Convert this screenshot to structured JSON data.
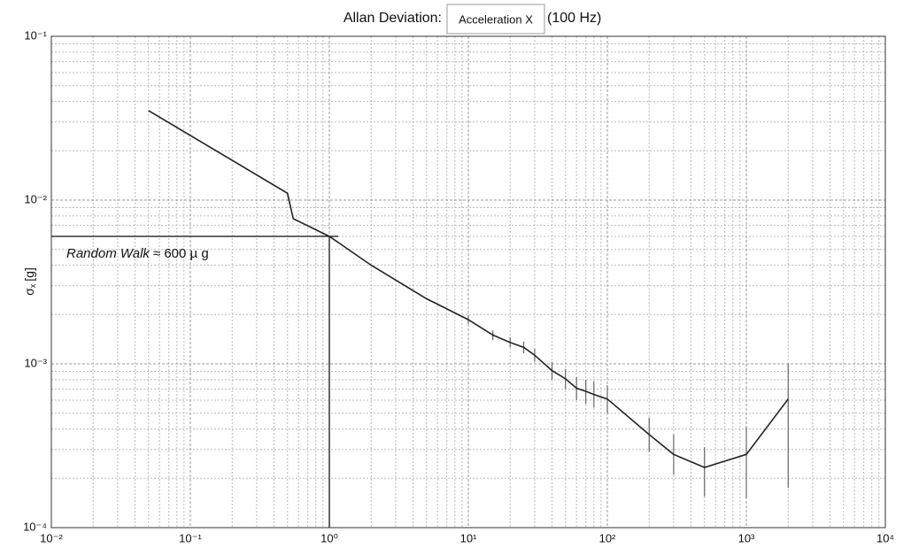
{
  "chart_data": {
    "type": "line",
    "title": "Allan Deviation:",
    "selector": "Acceleration X",
    "subtitle": "(100 Hz)",
    "ylabel": {
      "symbol": "σ",
      "subscript": "x",
      "unit": "[g]"
    },
    "log_x": true,
    "log_y": true,
    "grid": "major-and-minor",
    "xlim": [
      0.01,
      10000
    ],
    "ylim": [
      0.0001,
      0.1
    ],
    "xticks": [
      {
        "value": 0.01,
        "label": "10⁻²"
      },
      {
        "value": 0.1,
        "label": "10⁻¹"
      },
      {
        "value": 1,
        "label": "10⁰"
      },
      {
        "value": 10,
        "label": "10¹"
      },
      {
        "value": 100,
        "label": "10²"
      },
      {
        "value": 1000,
        "label": "10³"
      },
      {
        "value": 10000,
        "label": "10⁴"
      }
    ],
    "yticks": [
      {
        "value": 0.0001,
        "label": "10⁻⁴"
      },
      {
        "value": 0.001,
        "label": "10⁻³"
      },
      {
        "value": 0.01,
        "label": "10⁻²"
      },
      {
        "value": 0.1,
        "label": "10⁻¹"
      }
    ],
    "series": [
      {
        "color": "#222222",
        "x": [
          0.05,
          0.5,
          0.55,
          1,
          2,
          5,
          10,
          15,
          20,
          25,
          30,
          40,
          50,
          60,
          70,
          80,
          100,
          200,
          300,
          500,
          1000,
          2000
        ],
        "values": [
          0.0352,
          0.011,
          0.0077,
          0.006,
          0.004,
          0.0025,
          0.00186,
          0.0015,
          0.00135,
          0.00126,
          0.00113,
          0.00091,
          0.00081,
          0.00071,
          0.00068,
          0.00065,
          0.00061,
          0.00037,
          0.00028,
          0.000233,
          0.00028,
          0.00061
        ],
        "err_low": [
          null,
          null,
          null,
          null,
          null,
          null,
          0.00175,
          0.0014,
          0.00126,
          0.00116,
          0.00103,
          0.0008,
          0.0007,
          0.0006,
          0.00057,
          0.00054,
          0.0005,
          0.00029,
          0.00021,
          0.000155,
          0.000152,
          0.000175
        ],
        "err_high": [
          null,
          null,
          null,
          null,
          null,
          null,
          0.00198,
          0.0016,
          0.00145,
          0.00137,
          0.00124,
          0.00103,
          0.00093,
          0.00083,
          0.0008,
          0.00078,
          0.00074,
          0.00047,
          0.00037,
          0.00031,
          0.00041,
          0.001
        ]
      }
    ],
    "reference": {
      "x": 1,
      "y": 0.006
    },
    "annotation": {
      "italic": "Random Walk",
      "text": "≈ 600 µ g"
    }
  }
}
